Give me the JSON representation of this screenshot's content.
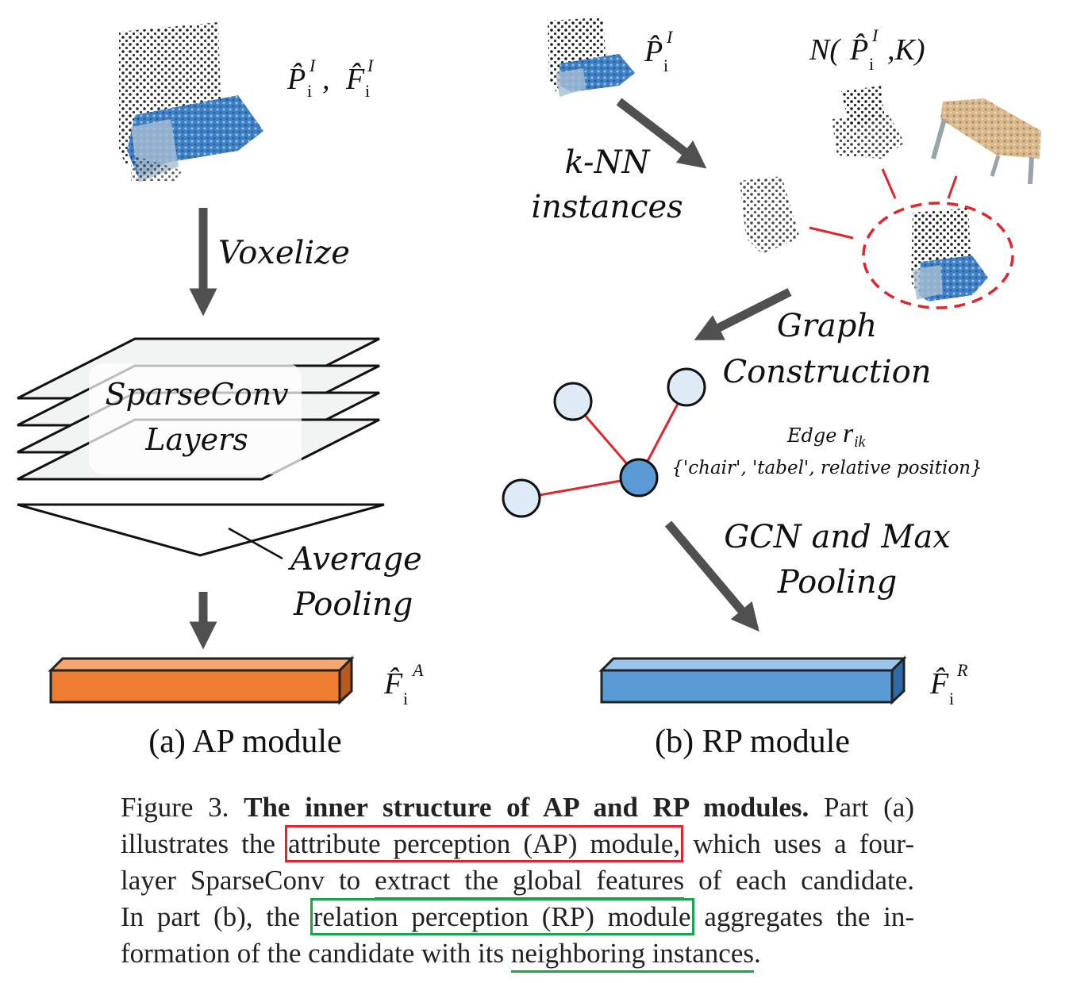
{
  "ap": {
    "input_label": {
      "p": "P̂",
      "p_sub": "i",
      "p_sup": "I",
      "sep": ",",
      "f": "F̂",
      "f_sub": "i",
      "f_sup": "I"
    },
    "voxelize": "Voxelize",
    "sparseconv_line1": "SparseConv",
    "sparseconv_line2": "Layers",
    "avg_line1": "Average",
    "avg_line2": "Pooling",
    "output_label": {
      "f": "F̂",
      "sub": "i",
      "sup": "A"
    },
    "module_title": "(a) AP module",
    "feature_color": "#ee7d31"
  },
  "rp": {
    "input_label": {
      "p": "P̂",
      "sub": "i",
      "sup": "I"
    },
    "neighbors_label": {
      "n": "N(",
      "p": "P̂",
      "sub": "i",
      "sup": "I",
      "rest": ",K)"
    },
    "knn_line1": "k-NN",
    "knn_line2": "instances",
    "graph_line1": "Graph",
    "graph_line2": "Construction",
    "edge_label": "Edge",
    "edge_symbol": "r",
    "edge_sub": "ik",
    "edge_attrs": "{'chair', 'tabel', relative position}",
    "gcn_line1": "GCN and Max",
    "gcn_line2": "Pooling",
    "output_label": {
      "f": "F̂",
      "sub": "i",
      "sup": "R"
    },
    "module_title": "(b) RP module",
    "feature_color": "#5b9bd5",
    "node_fill": "#deebf7",
    "center_node_fill": "#5b9bd5",
    "edge_color": "#e0252d"
  },
  "caption": {
    "fig": "Figure 3.",
    "title": "The inner structure of AP and RP modules.",
    "t1": "Part (a)",
    "t2": "illustrates the",
    "t3": "attribute perception (AP) module,",
    "t4": "which uses a four-",
    "t5": "layer SparseConv to",
    "t6": "extract the global features",
    "t7": "of each candidate.",
    "t8": "In part (b), the",
    "t9": "relation perception (RP) module",
    "t10": "aggregates the in-",
    "t11": "formation of the candidate with its",
    "t12": "neighboring instances",
    "t13": "."
  }
}
